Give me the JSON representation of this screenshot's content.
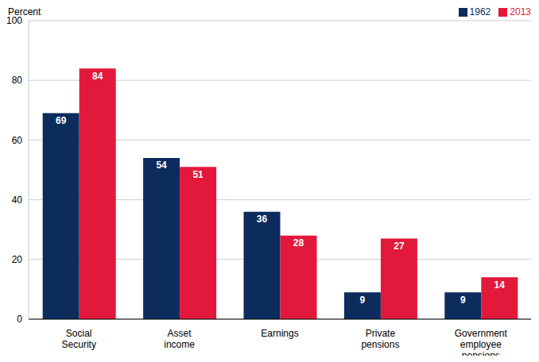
{
  "chart_data": {
    "type": "bar",
    "y_label": "Percent",
    "categories": [
      "Social Security",
      "Asset income",
      "Earnings",
      "Private pensions",
      "Government employee pensions"
    ],
    "series": [
      {
        "name": "1962",
        "color": "#0c2c5e",
        "values": [
          69,
          54,
          36,
          9,
          9
        ]
      },
      {
        "name": "2013",
        "color": "#e2193b",
        "values": [
          84,
          51,
          28,
          27,
          14
        ]
      }
    ],
    "ylim": [
      0,
      100
    ],
    "yticks": [
      0,
      20,
      40,
      60,
      80,
      100
    ],
    "grid": true,
    "legend": "top right",
    "data_labels": true
  }
}
